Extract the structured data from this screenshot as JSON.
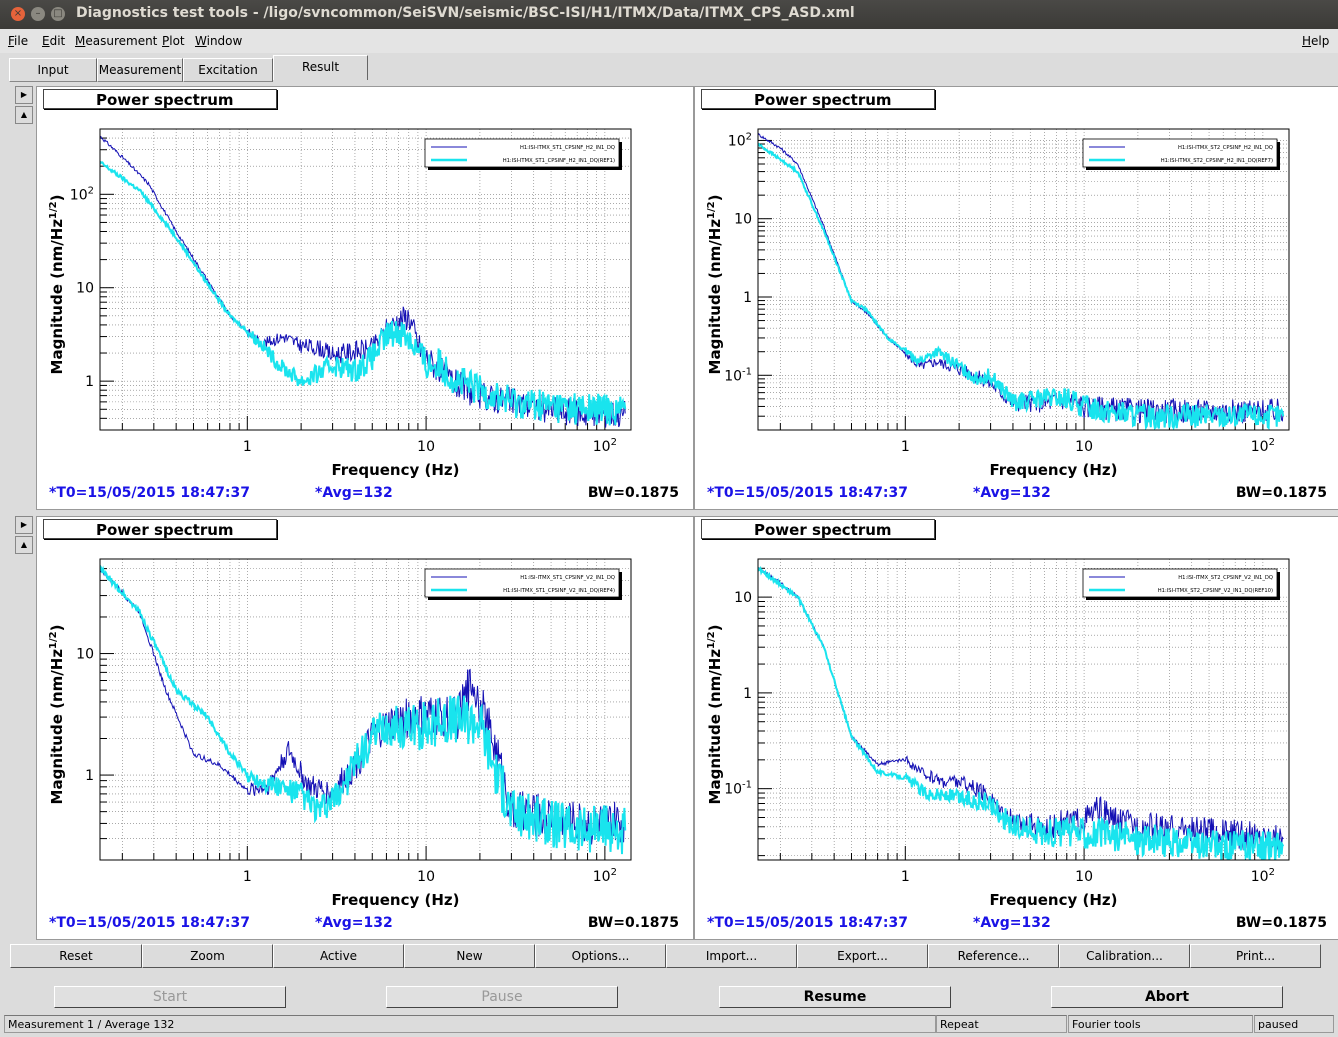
{
  "window": {
    "title": "Diagnostics test tools - /ligo/svncommon/SeiSVN/seismic/BSC-ISI/H1/ITMX/Data/ITMX_CPS_ASD.xml"
  },
  "menubar": {
    "items": [
      {
        "u": "F",
        "rest": "ile"
      },
      {
        "u": "E",
        "rest": "dit"
      },
      {
        "u": "M",
        "rest": "easurement"
      },
      {
        "u": "P",
        "rest": "lot"
      },
      {
        "u": "W",
        "rest": "indow"
      }
    ],
    "help": {
      "u": "H",
      "rest": "elp"
    }
  },
  "tabs": [
    "Input",
    "Measurement",
    "Excitation",
    "Result"
  ],
  "active_tab": "Result",
  "pads": [
    {
      "title": "Power spectrum",
      "t0": "*T0=15/05/2015 18:47:37",
      "avg": "*Avg=132",
      "bw": "BW=0.1875",
      "ylabel_main": "Magnitude (nm/Hz",
      "ylabel_exp": "1/2",
      "ylabel_close": ")",
      "xlabel": "Frequency (Hz)",
      "legend": [
        "H1:ISI-ITMX_ST1_CPSINF_H2_IN1_DQ",
        "H1:ISI-ITMX_ST1_CPSINF_H2_IN1_DQ(REF1)"
      ],
      "yticks": [
        {
          "v": 1,
          "t": "1"
        },
        {
          "v": 10,
          "t": "10"
        },
        {
          "v": 100,
          "t": "10",
          "e": "2"
        }
      ],
      "xticks": [
        {
          "v": 1,
          "t": "1"
        },
        {
          "v": 10,
          "t": "10"
        },
        {
          "v": 100,
          "t": "10",
          "e": "2"
        }
      ]
    },
    {
      "title": "Power spectrum",
      "t0": "*T0=15/05/2015 18:47:37",
      "avg": "*Avg=132",
      "bw": "BW=0.1875",
      "ylabel_main": "Magnitude (nm/Hz",
      "ylabel_exp": "1/2",
      "ylabel_close": ")",
      "xlabel": "Frequency (Hz)",
      "legend": [
        "H1:ISI-ITMX_ST2_CPSINF_H2_IN1_DQ",
        "H1:ISI-ITMX_ST2_CPSINF_H2_IN1_DQ(REF7)"
      ],
      "yticks": [
        {
          "v": 0.1,
          "t": "10",
          "e": "-1"
        },
        {
          "v": 1,
          "t": "1"
        },
        {
          "v": 10,
          "t": "10"
        },
        {
          "v": 100,
          "t": "10",
          "e": "2"
        }
      ],
      "xticks": [
        {
          "v": 1,
          "t": "1"
        },
        {
          "v": 10,
          "t": "10"
        },
        {
          "v": 100,
          "t": "10",
          "e": "2"
        }
      ]
    },
    {
      "title": "Power spectrum",
      "t0": "*T0=15/05/2015 18:47:37",
      "avg": "*Avg=132",
      "bw": "BW=0.1875",
      "ylabel_main": "Magnitude (nm/Hz",
      "ylabel_exp": "1/2",
      "ylabel_close": ")",
      "xlabel": "Frequency (Hz)",
      "legend": [
        "H1:ISI-ITMX_ST1_CPSINF_V2_IN1_DQ",
        "H1:ISI-ITMX_ST1_CPSINF_V2_IN1_DQ(REF4)"
      ],
      "yticks": [
        {
          "v": 1,
          "t": "1"
        },
        {
          "v": 10,
          "t": "10"
        }
      ],
      "xticks": [
        {
          "v": 1,
          "t": "1"
        },
        {
          "v": 10,
          "t": "10"
        },
        {
          "v": 100,
          "t": "10",
          "e": "2"
        }
      ]
    },
    {
      "title": "Power spectrum",
      "t0": "*T0=15/05/2015 18:47:37",
      "avg": "*Avg=132",
      "bw": "BW=0.1875",
      "ylabel_main": "Magnitude (nm/Hz",
      "ylabel_exp": "1/2",
      "ylabel_close": ")",
      "xlabel": "Frequency (Hz)",
      "legend": [
        "H1:ISI-ITMX_ST2_CPSINF_V2_IN1_DQ",
        "H1:ISI-ITMX_ST2_CPSINF_V2_IN1_DQ(REF10)"
      ],
      "yticks": [
        {
          "v": 0.1,
          "t": "10",
          "e": "-1"
        },
        {
          "v": 1,
          "t": "1"
        },
        {
          "v": 10,
          "t": "10"
        }
      ],
      "xticks": [
        {
          "v": 1,
          "t": "1"
        },
        {
          "v": 10,
          "t": "10"
        },
        {
          "v": 100,
          "t": "10",
          "e": "2"
        }
      ]
    }
  ],
  "toolbar": [
    "Reset",
    "Zoom",
    "Active",
    "New",
    "Options...",
    "Import...",
    "Export...",
    "Reference...",
    "Calibration...",
    "Print..."
  ],
  "controls": {
    "start": "Start",
    "pause": "Pause",
    "resume": "Resume",
    "abort": "Abort"
  },
  "status": {
    "left": "Measurement 1 / Average 132",
    "repeat": "Repeat",
    "tools": "Fourier tools",
    "state": "paused"
  },
  "colors": {
    "live": "#1410b4",
    "ref": "#19e4ee",
    "info_text": "#1a12e6"
  },
  "chart_data": [
    {
      "type": "line",
      "title": "Power spectrum",
      "xlabel": "Frequency (Hz)",
      "ylabel": "Magnitude (nm/Hz^1/2)",
      "x_scale": "log",
      "y_scale": "log",
      "xlim": [
        0.15,
        140
      ],
      "ylim": [
        0.3,
        500
      ],
      "grid": true,
      "legend_position": "top-right",
      "series": [
        {
          "name": "H1:ISI-ITMX_ST1_CPSINF_H2_IN1_DQ",
          "color": "#1410b4",
          "points": [
            [
              0.15,
              420
            ],
            [
              0.2,
              250
            ],
            [
              0.28,
              130
            ],
            [
              0.4,
              40
            ],
            [
              0.6,
              12
            ],
            [
              0.8,
              5
            ],
            [
              1.2,
              2.5
            ],
            [
              1.6,
              3
            ],
            [
              2,
              2.4
            ],
            [
              2.5,
              2.3
            ],
            [
              3,
              1.9
            ],
            [
              4,
              2.1
            ],
            [
              5,
              2.2
            ],
            [
              6,
              3.5
            ],
            [
              7,
              4.5
            ],
            [
              8,
              5
            ],
            [
              9,
              2.5
            ],
            [
              10,
              1.8
            ],
            [
              12,
              1.3
            ],
            [
              15,
              0.9
            ],
            [
              20,
              0.7
            ],
            [
              30,
              0.6
            ],
            [
              50,
              0.5
            ],
            [
              80,
              0.45
            ],
            [
              130,
              0.45
            ]
          ],
          "noise": 0.12
        },
        {
          "name": "H1:ISI-ITMX_ST1_CPSINF_H2_IN1_DQ(REF1)",
          "color": "#19e4ee",
          "points": [
            [
              0.15,
              220
            ],
            [
              0.25,
              110
            ],
            [
              0.4,
              35
            ],
            [
              0.6,
              11
            ],
            [
              0.8,
              5
            ],
            [
              1.2,
              2.5
            ],
            [
              1.5,
              1.5
            ],
            [
              2,
              1.0
            ],
            [
              2.5,
              1.2
            ],
            [
              3,
              1.5
            ],
            [
              4,
              1.3
            ],
            [
              5,
              1.8
            ],
            [
              6,
              3
            ],
            [
              7,
              3.5
            ],
            [
              8,
              3
            ],
            [
              10,
              1.5
            ],
            [
              12,
              1.5
            ],
            [
              15,
              1.0
            ],
            [
              20,
              0.8
            ],
            [
              30,
              0.6
            ],
            [
              50,
              0.55
            ],
            [
              80,
              0.5
            ],
            [
              130,
              0.5
            ]
          ],
          "noise": 0.14
        }
      ]
    },
    {
      "type": "line",
      "title": "Power spectrum",
      "xlabel": "Frequency (Hz)",
      "ylabel": "Magnitude (nm/Hz^1/2)",
      "x_scale": "log",
      "y_scale": "log",
      "xlim": [
        0.15,
        140
      ],
      "ylim": [
        0.02,
        140
      ],
      "grid": true,
      "legend_position": "top-right",
      "series": [
        {
          "name": "H1:ISI-ITMX_ST2_CPSINF_H2_IN1_DQ",
          "color": "#1410b4",
          "points": [
            [
              0.15,
              120
            ],
            [
              0.2,
              80
            ],
            [
              0.25,
              50
            ],
            [
              0.35,
              8
            ],
            [
              0.5,
              0.9
            ],
            [
              0.6,
              0.65
            ],
            [
              0.8,
              0.3
            ],
            [
              1.2,
              0.13
            ],
            [
              1.5,
              0.15
            ],
            [
              2,
              0.12
            ],
            [
              3,
              0.08
            ],
            [
              4,
              0.045
            ],
            [
              6,
              0.045
            ],
            [
              8,
              0.05
            ],
            [
              10,
              0.04
            ],
            [
              20,
              0.035
            ],
            [
              50,
              0.035
            ],
            [
              130,
              0.035
            ]
          ],
          "noise": 0.12
        },
        {
          "name": "H1:ISI-ITMX_ST2_CPSINF_H2_IN1_DQ(REF7)",
          "color": "#19e4ee",
          "points": [
            [
              0.15,
              90
            ],
            [
              0.25,
              40
            ],
            [
              0.35,
              7
            ],
            [
              0.5,
              0.9
            ],
            [
              0.6,
              0.7
            ],
            [
              0.8,
              0.3
            ],
            [
              1.2,
              0.15
            ],
            [
              1.5,
              0.2
            ],
            [
              2,
              0.13
            ],
            [
              2.5,
              0.09
            ],
            [
              3,
              0.1
            ],
            [
              4,
              0.045
            ],
            [
              6,
              0.05
            ],
            [
              8,
              0.05
            ],
            [
              10,
              0.04
            ],
            [
              20,
              0.03
            ],
            [
              50,
              0.03
            ],
            [
              130,
              0.03
            ]
          ],
          "noise": 0.12
        }
      ]
    },
    {
      "type": "line",
      "title": "Power spectrum",
      "xlabel": "Frequency (Hz)",
      "ylabel": "Magnitude (nm/Hz^1/2)",
      "x_scale": "log",
      "y_scale": "log",
      "xlim": [
        0.15,
        140
      ],
      "ylim": [
        0.2,
        60
      ],
      "grid": true,
      "legend_position": "top-right",
      "series": [
        {
          "name": "H1:ISI-ITMX_ST1_CPSINF_V2_IN1_DQ",
          "color": "#1410b4",
          "points": [
            [
              0.15,
              50
            ],
            [
              0.25,
              22
            ],
            [
              0.35,
              5
            ],
            [
              0.5,
              1.5
            ],
            [
              0.7,
              1.2
            ],
            [
              1,
              0.75
            ],
            [
              1.3,
              0.8
            ],
            [
              1.7,
              1.6
            ],
            [
              2.2,
              0.8
            ],
            [
              3,
              0.7
            ],
            [
              4,
              1.2
            ],
            [
              5,
              2
            ],
            [
              6,
              2.5
            ],
            [
              8,
              3
            ],
            [
              10,
              3
            ],
            [
              15,
              3
            ],
            [
              18,
              6
            ],
            [
              20,
              4
            ],
            [
              25,
              1.5
            ],
            [
              30,
              0.5
            ],
            [
              50,
              0.45
            ],
            [
              80,
              0.4
            ],
            [
              130,
              0.4
            ]
          ],
          "noise": 0.14
        },
        {
          "name": "H1:ISI-ITMX_ST1_CPSINF_V2_IN1_DQ(REF4)",
          "color": "#19e4ee",
          "points": [
            [
              0.15,
              50
            ],
            [
              0.25,
              22
            ],
            [
              0.4,
              5
            ],
            [
              0.6,
              3
            ],
            [
              0.8,
              1.5
            ],
            [
              1,
              1.0
            ],
            [
              1.5,
              0.8
            ],
            [
              2,
              0.7
            ],
            [
              2.5,
              0.5
            ],
            [
              3,
              0.6
            ],
            [
              4,
              1.2
            ],
            [
              5,
              2
            ],
            [
              6,
              2.5
            ],
            [
              8,
              2.5
            ],
            [
              10,
              2.5
            ],
            [
              15,
              3
            ],
            [
              20,
              2.8
            ],
            [
              25,
              1.0
            ],
            [
              30,
              0.5
            ],
            [
              50,
              0.4
            ],
            [
              80,
              0.35
            ],
            [
              130,
              0.35
            ]
          ],
          "noise": 0.16
        }
      ]
    },
    {
      "type": "line",
      "title": "Power spectrum",
      "xlabel": "Frequency (Hz)",
      "ylabel": "Magnitude (nm/Hz^1/2)",
      "x_scale": "log",
      "y_scale": "log",
      "xlim": [
        0.15,
        140
      ],
      "ylim": [
        0.018,
        25
      ],
      "grid": true,
      "legend_position": "top-right",
      "series": [
        {
          "name": "H1:ISI-ITMX_ST2_CPSINF_V2_IN1_DQ",
          "color": "#1410b4",
          "points": [
            [
              0.15,
              20
            ],
            [
              0.2,
              14
            ],
            [
              0.25,
              10
            ],
            [
              0.35,
              3
            ],
            [
              0.5,
              0.35
            ],
            [
              0.7,
              0.18
            ],
            [
              1,
              0.2
            ],
            [
              1.2,
              0.15
            ],
            [
              1.6,
              0.12
            ],
            [
              2,
              0.12
            ],
            [
              3,
              0.08
            ],
            [
              4,
              0.045
            ],
            [
              6,
              0.04
            ],
            [
              8,
              0.045
            ],
            [
              10,
              0.045
            ],
            [
              12,
              0.06
            ],
            [
              15,
              0.045
            ],
            [
              20,
              0.04
            ],
            [
              50,
              0.035
            ],
            [
              130,
              0.03
            ]
          ],
          "noise": 0.12
        },
        {
          "name": "H1:ISI-ITMX_ST2_CPSINF_V2_IN1_DQ(REF10)",
          "color": "#19e4ee",
          "points": [
            [
              0.15,
              20
            ],
            [
              0.25,
              10
            ],
            [
              0.35,
              3
            ],
            [
              0.5,
              0.35
            ],
            [
              0.7,
              0.15
            ],
            [
              1,
              0.13
            ],
            [
              1.3,
              0.09
            ],
            [
              2,
              0.08
            ],
            [
              3,
              0.07
            ],
            [
              4,
              0.04
            ],
            [
              6,
              0.035
            ],
            [
              10,
              0.035
            ],
            [
              20,
              0.03
            ],
            [
              50,
              0.025
            ],
            [
              130,
              0.025
            ]
          ],
          "noise": 0.13
        }
      ]
    }
  ]
}
